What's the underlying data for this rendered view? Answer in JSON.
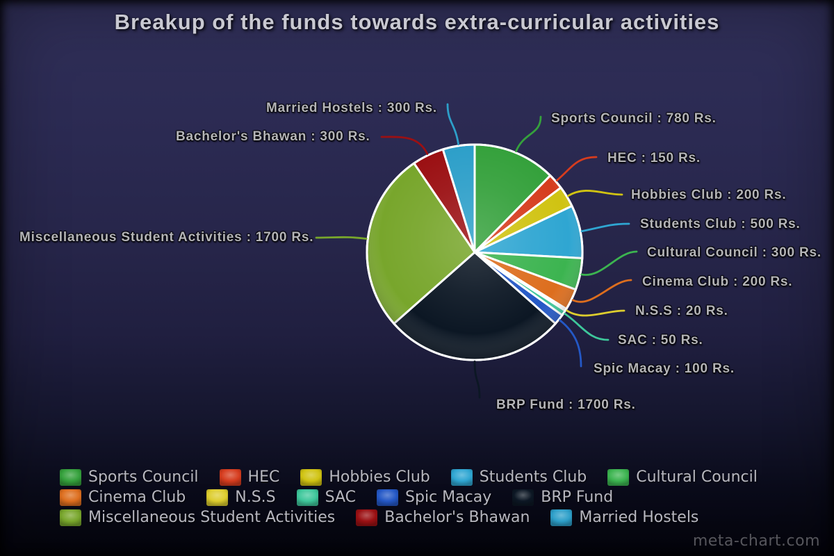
{
  "title": "Breakup of the funds towards extra-curricular activities",
  "watermark": "meta-chart.com",
  "chart_data": {
    "type": "pie",
    "title": "Breakup of the funds towards extra-curricular activities",
    "unit_suffix": "Rs.",
    "total": 6300,
    "start_angle_deg": 0,
    "direction": "clockwise",
    "legend_position": "bottom",
    "label_format": "{name} : {value} Rs.",
    "series": [
      {
        "name": "Sports Council",
        "value": 780,
        "color": "#35a13c"
      },
      {
        "name": "HEC",
        "value": 150,
        "color": "#d63c1e"
      },
      {
        "name": "Hobbies Club",
        "value": 200,
        "color": "#d0c312"
      },
      {
        "name": "Students Club",
        "value": 500,
        "color": "#2fa6d2"
      },
      {
        "name": "Cultural Council",
        "value": 300,
        "color": "#3cb450"
      },
      {
        "name": "Cinema Club",
        "value": 200,
        "color": "#dd6e1e"
      },
      {
        "name": "N.S.S",
        "value": 20,
        "color": "#ddcd2e"
      },
      {
        "name": "SAC",
        "value": 50,
        "color": "#3ec79b"
      },
      {
        "name": "Spic Macay",
        "value": 100,
        "color": "#2458c6"
      },
      {
        "name": "BRP Fund",
        "value": 1700,
        "color": "#0c1724"
      },
      {
        "name": "Miscellaneous Student Activities",
        "value": 1700,
        "color": "#78a62c"
      },
      {
        "name": "Bachelor's Bhawan",
        "value": 300,
        "color": "#9b1013"
      },
      {
        "name": "Married Hostels",
        "value": 300,
        "color": "#2d9fc9"
      }
    ]
  }
}
